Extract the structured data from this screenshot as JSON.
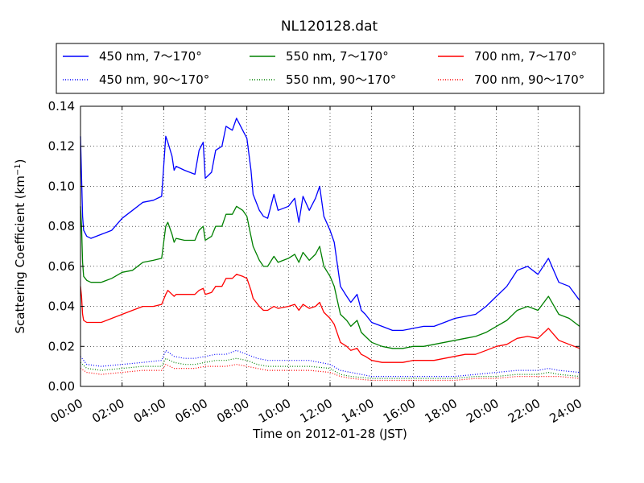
{
  "chart_data": {
    "type": "line",
    "title": "NL120128.dat",
    "xlabel": "Time on 2012-01-28 (JST)",
    "ylabel": "Scattering Coefficient (km",
    "ylabel_sup": "−1",
    "ylabel_close": ")",
    "xlim": [
      0,
      24
    ],
    "ylim": [
      0,
      0.14
    ],
    "grid": true,
    "legend_position": "top",
    "x_ticks": [
      0,
      2,
      4,
      6,
      8,
      10,
      12,
      14,
      16,
      18,
      20,
      22,
      24
    ],
    "x_tick_labels": [
      "00:00",
      "02:00",
      "04:00",
      "06:00",
      "08:00",
      "10:00",
      "12:00",
      "14:00",
      "16:00",
      "18:00",
      "20:00",
      "22:00",
      "24:00"
    ],
    "y_ticks": [
      0,
      0.02,
      0.04,
      0.06,
      0.08,
      0.1,
      0.12,
      0.14
    ],
    "y_tick_labels": [
      "0.00",
      "0.02",
      "0.04",
      "0.06",
      "0.08",
      "0.10",
      "0.12",
      "0.14"
    ],
    "series": [
      {
        "name": "450 nm, 7～170°",
        "color": "#0000ff",
        "style": "solid",
        "x": [
          0,
          0.05,
          0.1,
          0.15,
          0.3,
          0.5,
          1,
          1.5,
          2,
          2.5,
          3,
          3.5,
          3.9,
          4.1,
          4.2,
          4.4,
          4.5,
          4.6,
          5,
          5.5,
          5.7,
          5.9,
          6,
          6.3,
          6.5,
          6.8,
          7,
          7.3,
          7.5,
          7.8,
          8,
          8.2,
          8.3,
          8.6,
          8.8,
          9,
          9.3,
          9.5,
          10,
          10.3,
          10.5,
          10.7,
          11,
          11.3,
          11.5,
          11.7,
          12,
          12.2,
          12.5,
          12.8,
          13,
          13.3,
          13.5,
          13.7,
          14,
          14.5,
          15,
          15.5,
          16,
          16.5,
          17,
          17.5,
          18,
          18.5,
          19,
          19.5,
          20,
          20.5,
          21,
          21.5,
          22,
          22.5,
          23,
          23.5,
          24
        ],
        "y": [
          0.125,
          0.105,
          0.085,
          0.078,
          0.075,
          0.074,
          0.076,
          0.078,
          0.084,
          0.088,
          0.092,
          0.093,
          0.095,
          0.125,
          0.122,
          0.115,
          0.108,
          0.11,
          0.108,
          0.106,
          0.118,
          0.122,
          0.104,
          0.107,
          0.118,
          0.12,
          0.13,
          0.128,
          0.134,
          0.128,
          0.124,
          0.108,
          0.096,
          0.088,
          0.085,
          0.084,
          0.096,
          0.088,
          0.09,
          0.094,
          0.082,
          0.095,
          0.088,
          0.094,
          0.1,
          0.085,
          0.078,
          0.072,
          0.05,
          0.045,
          0.042,
          0.046,
          0.038,
          0.036,
          0.032,
          0.03,
          0.028,
          0.028,
          0.029,
          0.03,
          0.03,
          0.032,
          0.034,
          0.035,
          0.036,
          0.04,
          0.045,
          0.05,
          0.058,
          0.06,
          0.056,
          0.064,
          0.052,
          0.05,
          0.043
        ]
      },
      {
        "name": "550 nm, 7～170°",
        "color": "#008000",
        "style": "solid",
        "x": [
          0,
          0.05,
          0.1,
          0.15,
          0.3,
          0.5,
          1,
          1.5,
          2,
          2.5,
          3,
          3.5,
          3.9,
          4.1,
          4.2,
          4.4,
          4.5,
          4.6,
          5,
          5.5,
          5.7,
          5.9,
          6,
          6.3,
          6.5,
          6.8,
          7,
          7.3,
          7.5,
          7.8,
          8,
          8.2,
          8.3,
          8.6,
          8.8,
          9,
          9.3,
          9.5,
          10,
          10.3,
          10.5,
          10.7,
          11,
          11.3,
          11.5,
          11.7,
          12,
          12.2,
          12.5,
          12.8,
          13,
          13.3,
          13.5,
          13.7,
          14,
          14.5,
          15,
          15.5,
          16,
          16.5,
          17,
          17.5,
          18,
          18.5,
          19,
          19.5,
          20,
          20.5,
          21,
          21.5,
          22,
          22.5,
          23,
          23.5,
          24
        ],
        "y": [
          0.09,
          0.08,
          0.062,
          0.055,
          0.053,
          0.052,
          0.052,
          0.054,
          0.057,
          0.058,
          0.062,
          0.063,
          0.064,
          0.08,
          0.082,
          0.076,
          0.072,
          0.074,
          0.073,
          0.073,
          0.078,
          0.08,
          0.073,
          0.075,
          0.08,
          0.08,
          0.086,
          0.086,
          0.09,
          0.088,
          0.085,
          0.075,
          0.07,
          0.063,
          0.06,
          0.06,
          0.065,
          0.062,
          0.064,
          0.066,
          0.062,
          0.067,
          0.063,
          0.066,
          0.07,
          0.06,
          0.055,
          0.05,
          0.036,
          0.033,
          0.03,
          0.033,
          0.027,
          0.025,
          0.022,
          0.02,
          0.019,
          0.019,
          0.02,
          0.02,
          0.021,
          0.022,
          0.023,
          0.024,
          0.025,
          0.027,
          0.03,
          0.033,
          0.038,
          0.04,
          0.038,
          0.045,
          0.036,
          0.034,
          0.03
        ]
      },
      {
        "name": "700 nm, 7～170°",
        "color": "#ff0000",
        "style": "solid",
        "x": [
          0,
          0.05,
          0.1,
          0.15,
          0.3,
          0.5,
          1,
          1.5,
          2,
          2.5,
          3,
          3.5,
          3.9,
          4.1,
          4.2,
          4.4,
          4.5,
          4.6,
          5,
          5.5,
          5.7,
          5.9,
          6,
          6.3,
          6.5,
          6.8,
          7,
          7.3,
          7.5,
          7.8,
          8,
          8.2,
          8.3,
          8.6,
          8.8,
          9,
          9.3,
          9.5,
          10,
          10.3,
          10.5,
          10.7,
          11,
          11.3,
          11.5,
          11.7,
          12,
          12.2,
          12.5,
          12.8,
          13,
          13.3,
          13.5,
          13.7,
          14,
          14.5,
          15,
          15.5,
          16,
          16.5,
          17,
          17.5,
          18,
          18.5,
          19,
          19.5,
          20,
          20.5,
          21,
          21.5,
          22,
          22.5,
          23,
          23.5,
          24
        ],
        "y": [
          0.05,
          0.045,
          0.036,
          0.033,
          0.032,
          0.032,
          0.032,
          0.034,
          0.036,
          0.038,
          0.04,
          0.04,
          0.041,
          0.046,
          0.048,
          0.046,
          0.045,
          0.046,
          0.046,
          0.046,
          0.048,
          0.049,
          0.046,
          0.047,
          0.05,
          0.05,
          0.054,
          0.054,
          0.056,
          0.055,
          0.054,
          0.048,
          0.044,
          0.04,
          0.038,
          0.038,
          0.04,
          0.039,
          0.04,
          0.041,
          0.038,
          0.041,
          0.039,
          0.04,
          0.042,
          0.037,
          0.034,
          0.031,
          0.022,
          0.02,
          0.018,
          0.019,
          0.016,
          0.015,
          0.013,
          0.012,
          0.012,
          0.012,
          0.013,
          0.013,
          0.013,
          0.014,
          0.015,
          0.016,
          0.016,
          0.018,
          0.02,
          0.021,
          0.024,
          0.025,
          0.024,
          0.029,
          0.023,
          0.021,
          0.019
        ]
      },
      {
        "name": "450 nm, 90～170°",
        "color": "#0000ff",
        "style": "dotted",
        "x": [
          0,
          0.3,
          1,
          2,
          3,
          3.9,
          4.1,
          4.5,
          5,
          5.5,
          6,
          6.5,
          7,
          7.5,
          8,
          8.5,
          9,
          10,
          11,
          12,
          12.5,
          13,
          14,
          15,
          16,
          17,
          18,
          19,
          20,
          21,
          22,
          22.5,
          23,
          24
        ],
        "y": [
          0.015,
          0.011,
          0.01,
          0.011,
          0.012,
          0.013,
          0.018,
          0.015,
          0.014,
          0.014,
          0.015,
          0.016,
          0.016,
          0.018,
          0.016,
          0.014,
          0.013,
          0.013,
          0.013,
          0.011,
          0.008,
          0.007,
          0.005,
          0.005,
          0.005,
          0.005,
          0.005,
          0.006,
          0.007,
          0.008,
          0.008,
          0.009,
          0.008,
          0.007
        ]
      },
      {
        "name": "550 nm, 90～170°",
        "color": "#008000",
        "style": "dotted",
        "x": [
          0,
          0.3,
          1,
          2,
          3,
          3.9,
          4.1,
          4.5,
          5,
          5.5,
          6,
          6.5,
          7,
          7.5,
          8,
          8.5,
          9,
          10,
          11,
          12,
          12.5,
          13,
          14,
          15,
          16,
          17,
          18,
          19,
          20,
          21,
          22,
          22.5,
          23,
          24
        ],
        "y": [
          0.012,
          0.009,
          0.008,
          0.009,
          0.01,
          0.01,
          0.014,
          0.012,
          0.011,
          0.011,
          0.012,
          0.013,
          0.013,
          0.014,
          0.013,
          0.011,
          0.01,
          0.01,
          0.01,
          0.009,
          0.006,
          0.005,
          0.004,
          0.004,
          0.004,
          0.004,
          0.004,
          0.005,
          0.005,
          0.006,
          0.006,
          0.007,
          0.006,
          0.005
        ]
      },
      {
        "name": "700 nm, 90～170°",
        "color": "#ff0000",
        "style": "dotted",
        "x": [
          0,
          0.3,
          1,
          2,
          3,
          3.9,
          4.1,
          4.5,
          5,
          5.5,
          6,
          6.5,
          7,
          7.5,
          8,
          8.5,
          9,
          10,
          11,
          12,
          12.5,
          13,
          14,
          15,
          16,
          17,
          18,
          19,
          20,
          21,
          22,
          22.5,
          23,
          24
        ],
        "y": [
          0.009,
          0.007,
          0.006,
          0.007,
          0.008,
          0.008,
          0.011,
          0.009,
          0.009,
          0.009,
          0.01,
          0.01,
          0.01,
          0.011,
          0.01,
          0.009,
          0.008,
          0.008,
          0.008,
          0.007,
          0.005,
          0.004,
          0.003,
          0.003,
          0.003,
          0.003,
          0.003,
          0.004,
          0.004,
          0.005,
          0.005,
          0.005,
          0.005,
          0.004
        ]
      }
    ]
  }
}
